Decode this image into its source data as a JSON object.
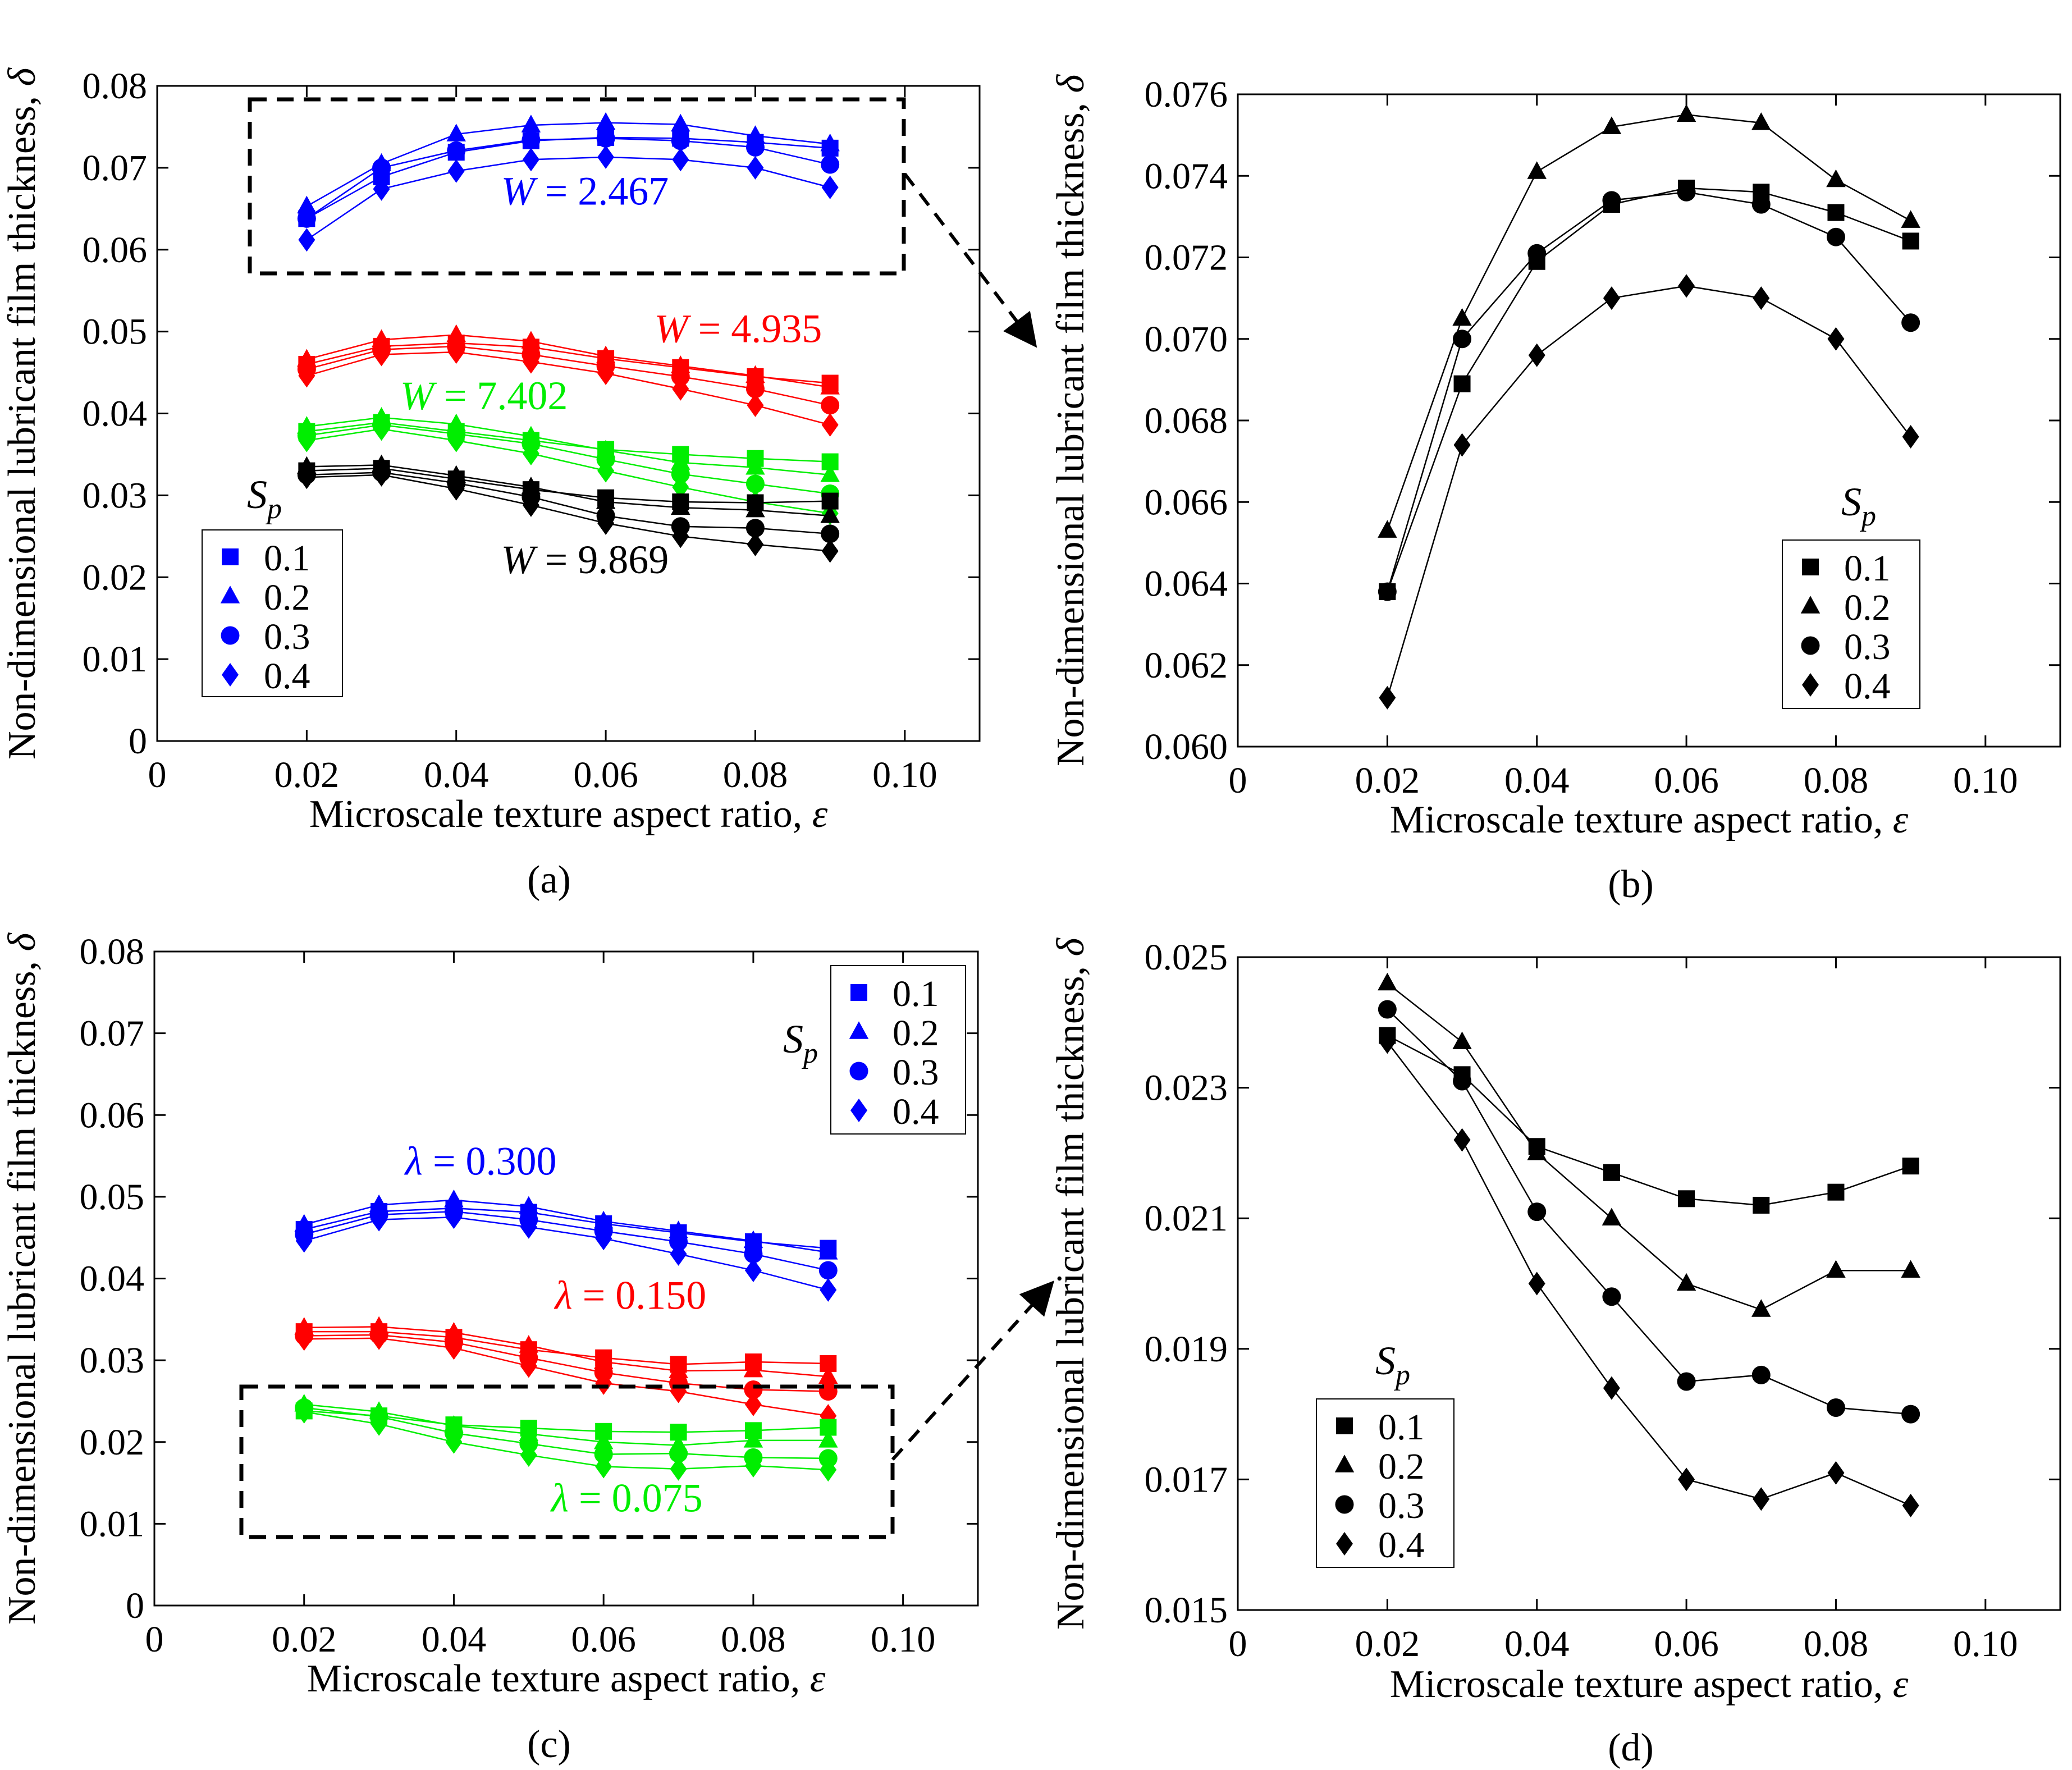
{
  "chart_data": [
    {
      "panel": "a",
      "type": "line",
      "caption": "(a)",
      "xlabel": "Microscale texture aspect ratio, ε",
      "ylabel": "Non-dimensional lubricant film thickness, δ",
      "xlim": [
        0,
        0.11
      ],
      "ylim": [
        0,
        0.08
      ],
      "xticks": [
        "0",
        "0.02",
        "0.04",
        "0.06",
        "0.08",
        "0.10"
      ],
      "yticks": [
        "0",
        "0.01",
        "0.02",
        "0.03",
        "0.04",
        "0.05",
        "0.06",
        "0.07",
        "0.08"
      ],
      "legend": {
        "title": "S",
        "title_sub": "p",
        "placement": "bottom-left",
        "entries": [
          "0.1",
          "0.2",
          "0.3",
          "0.4"
        ],
        "markers": [
          "square",
          "triangle",
          "circle",
          "diamond"
        ],
        "color": "#0000ff"
      },
      "annotations": [
        {
          "prefix": "W",
          "text": " = 2.467",
          "color": "#0000ff",
          "x": 0.046,
          "y": 0.0655
        },
        {
          "prefix": "W",
          "text": " = 4.935",
          "color": "#ff0000",
          "x": 0.0665,
          "y": 0.0487
        },
        {
          "prefix": "W",
          "text": " = 7.402",
          "color": "#00ee00",
          "x": 0.0325,
          "y": 0.0405
        },
        {
          "prefix": "W",
          "text": " = 9.869",
          "color": "#000000",
          "x": 0.046,
          "y": 0.0205
        }
      ],
      "x": [
        0.02,
        0.03,
        0.04,
        0.05,
        0.06,
        0.07,
        0.08,
        0.09
      ],
      "groups": [
        {
          "name": "W = 2.467",
          "color": "#0000ff",
          "series": [
            {
              "name": "0.1",
              "marker": "square",
              "values": [
                0.0638,
                0.0689,
                0.0719,
                0.0733,
                0.0737,
                0.0736,
                0.0731,
                0.0724
              ]
            },
            {
              "name": "0.2",
              "marker": "triangle",
              "values": [
                0.0653,
                0.0705,
                0.0741,
                0.0752,
                0.0755,
                0.0753,
                0.0739,
                0.0729
              ]
            },
            {
              "name": "0.3",
              "marker": "circle",
              "values": [
                0.0638,
                0.07,
                0.0721,
                0.0734,
                0.0736,
                0.0733,
                0.0725,
                0.0704
              ]
            },
            {
              "name": "0.4",
              "marker": "diamond",
              "values": [
                0.0612,
                0.0674,
                0.0696,
                0.071,
                0.0713,
                0.071,
                0.07,
                0.0676
              ]
            }
          ]
        },
        {
          "name": "W = 4.935",
          "color": "#ff0000",
          "series": [
            {
              "name": "0.1",
              "marker": "square",
              "values": [
                0.046,
                0.0482,
                0.0486,
                0.0481,
                0.0467,
                0.0456,
                0.0445,
                0.0437
              ]
            },
            {
              "name": "0.2",
              "marker": "triangle",
              "values": [
                0.0466,
                0.049,
                0.0496,
                0.0488,
                0.047,
                0.0458,
                0.0446,
                0.0432
              ]
            },
            {
              "name": "0.3",
              "marker": "circle",
              "values": [
                0.0454,
                0.0478,
                0.0482,
                0.0472,
                0.0458,
                0.0445,
                0.043,
                0.041
              ]
            },
            {
              "name": "0.4",
              "marker": "diamond",
              "values": [
                0.0446,
                0.0472,
                0.0475,
                0.0463,
                0.0449,
                0.043,
                0.041,
                0.0386
              ]
            }
          ]
        },
        {
          "name": "W = 7.402",
          "color": "#00ee00",
          "series": [
            {
              "name": "0.1",
              "marker": "square",
              "values": [
                0.0378,
                0.0389,
                0.0378,
                0.0367,
                0.0356,
                0.035,
                0.0345,
                0.0341
              ]
            },
            {
              "name": "0.2",
              "marker": "triangle",
              "values": [
                0.0384,
                0.0395,
                0.0387,
                0.0372,
                0.0355,
                0.034,
                0.0334,
                0.0325
              ]
            },
            {
              "name": "0.3",
              "marker": "circle",
              "values": [
                0.0373,
                0.0386,
                0.0375,
                0.0363,
                0.0344,
                0.0326,
                0.0314,
                0.0302
              ]
            },
            {
              "name": "0.4",
              "marker": "diamond",
              "values": [
                0.0367,
                0.0381,
                0.0367,
                0.0351,
                0.033,
                0.031,
                0.0292,
                0.0278
              ]
            }
          ]
        },
        {
          "name": "W = 9.869",
          "color": "#000000",
          "series": [
            {
              "name": "0.1",
              "marker": "square",
              "values": [
                0.033,
                0.0333,
                0.032,
                0.0307,
                0.0297,
                0.0292,
                0.0291,
                0.0293
              ]
            },
            {
              "name": "0.2",
              "marker": "triangle",
              "values": [
                0.0335,
                0.0337,
                0.0324,
                0.031,
                0.0292,
                0.0285,
                0.0282,
                0.0275
              ]
            },
            {
              "name": "0.3",
              "marker": "circle",
              "values": [
                0.0325,
                0.0328,
                0.0315,
                0.0298,
                0.0275,
                0.0262,
                0.026,
                0.0253
              ]
            },
            {
              "name": "0.4",
              "marker": "diamond",
              "values": [
                0.0322,
                0.0325,
                0.0308,
                0.0288,
                0.0266,
                0.025,
                0.024,
                0.0232
              ]
            }
          ]
        }
      ]
    },
    {
      "panel": "b",
      "type": "line",
      "caption": "(b)",
      "xlabel": "Microscale texture aspect ratio, ε",
      "ylabel": "Non-dimensional lubricant film thickness, δ",
      "xlim": [
        0,
        0.11
      ],
      "ylim": [
        0.06,
        0.076
      ],
      "xticks": [
        "0",
        "0.02",
        "0.04",
        "0.06",
        "0.08",
        "0.10"
      ],
      "yticks": [
        "0.060",
        "0.062",
        "0.064",
        "0.066",
        "0.068",
        "0.070",
        "0.072",
        "0.074",
        "0.076"
      ],
      "legend": {
        "title": "S",
        "title_sub": "p",
        "placement": "bottom-right",
        "entries": [
          "0.1",
          "0.2",
          "0.3",
          "0.4"
        ],
        "markers": [
          "square",
          "triangle",
          "circle",
          "diamond"
        ],
        "color": "#000000"
      },
      "annotations": [],
      "x": [
        0.02,
        0.03,
        0.04,
        0.05,
        0.06,
        0.07,
        0.08,
        0.09
      ],
      "groups": [
        {
          "name": "W = 2.467",
          "color": "#000000",
          "series": [
            {
              "name": "0.1",
              "marker": "square",
              "values": [
                0.0638,
                0.0689,
                0.0719,
                0.0733,
                0.0737,
                0.0736,
                0.0731,
                0.0724
              ]
            },
            {
              "name": "0.2",
              "marker": "triangle",
              "values": [
                0.0653,
                0.0705,
                0.0741,
                0.0752,
                0.0755,
                0.0753,
                0.0739,
                0.0729
              ]
            },
            {
              "name": "0.3",
              "marker": "circle",
              "values": [
                0.0638,
                0.07,
                0.0721,
                0.0734,
                0.0736,
                0.0733,
                0.0725,
                0.0704
              ]
            },
            {
              "name": "0.4",
              "marker": "diamond",
              "values": [
                0.0612,
                0.0674,
                0.0696,
                0.071,
                0.0713,
                0.071,
                0.07,
                0.0676
              ]
            }
          ]
        }
      ]
    },
    {
      "panel": "c",
      "type": "line",
      "caption": "(c)",
      "xlabel": "Microscale texture aspect ratio, ε",
      "ylabel": "Non-dimensional lubricant film thickness, δ",
      "xlim": [
        0,
        0.11
      ],
      "ylim": [
        0,
        0.08
      ],
      "xticks": [
        "0",
        "0.02",
        "0.04",
        "0.06",
        "0.08",
        "0.10"
      ],
      "yticks": [
        "0",
        "0.01",
        "0.02",
        "0.03",
        "0.04",
        "0.05",
        "0.06",
        "0.07",
        "0.08"
      ],
      "legend": {
        "title": "S",
        "title_sub": "p",
        "placement": "top-right",
        "entries": [
          "0.1",
          "0.2",
          "0.3",
          "0.4"
        ],
        "markers": [
          "square",
          "triangle",
          "circle",
          "diamond"
        ],
        "color": "#0000ff"
      },
      "annotations": [
        {
          "prefix": "λ",
          "text": " = 0.300",
          "color": "#0000ff",
          "x": 0.0335,
          "y": 0.0527
        },
        {
          "prefix": "λ",
          "text": " = 0.150",
          "color": "#ff0000",
          "x": 0.0535,
          "y": 0.0363
        },
        {
          "prefix": "λ",
          "text": " = 0.075",
          "color": "#00ee00",
          "x": 0.053,
          "y": 0.0115
        }
      ],
      "x": [
        0.02,
        0.03,
        0.04,
        0.05,
        0.06,
        0.07,
        0.08,
        0.09
      ],
      "groups": [
        {
          "name": "λ = 0.300",
          "color": "#0000ff",
          "series": [
            {
              "name": "0.1",
              "marker": "square",
              "values": [
                0.046,
                0.0482,
                0.0486,
                0.0481,
                0.0467,
                0.0456,
                0.0445,
                0.0437
              ]
            },
            {
              "name": "0.2",
              "marker": "triangle",
              "values": [
                0.0466,
                0.049,
                0.0496,
                0.0488,
                0.047,
                0.0458,
                0.0446,
                0.0432
              ]
            },
            {
              "name": "0.3",
              "marker": "circle",
              "values": [
                0.0454,
                0.0478,
                0.0482,
                0.0472,
                0.0458,
                0.0445,
                0.043,
                0.041
              ]
            },
            {
              "name": "0.4",
              "marker": "diamond",
              "values": [
                0.0446,
                0.0472,
                0.0475,
                0.0463,
                0.0449,
                0.043,
                0.041,
                0.0386
              ]
            }
          ]
        },
        {
          "name": "λ = 0.150",
          "color": "#ff0000",
          "series": [
            {
              "name": "0.1",
              "marker": "square",
              "values": [
                0.0335,
                0.0335,
                0.0328,
                0.0313,
                0.0303,
                0.0295,
                0.0298,
                0.0296
              ]
            },
            {
              "name": "0.2",
              "marker": "triangle",
              "values": [
                0.034,
                0.0341,
                0.0334,
                0.0318,
                0.0298,
                0.0287,
                0.0288,
                0.028
              ]
            },
            {
              "name": "0.3",
              "marker": "circle",
              "values": [
                0.033,
                0.0331,
                0.0322,
                0.0303,
                0.0285,
                0.0272,
                0.0264,
                0.0262
              ]
            },
            {
              "name": "0.4",
              "marker": "diamond",
              "values": [
                0.0326,
                0.0327,
                0.0315,
                0.0293,
                0.0272,
                0.0262,
                0.0246,
                0.0232
              ]
            }
          ]
        },
        {
          "name": "λ = 0.075",
          "color": "#00ee00",
          "series": [
            {
              "name": "0.1",
              "marker": "square",
              "values": [
                0.0238,
                0.0232,
                0.0221,
                0.0217,
                0.0213,
                0.0212,
                0.0214,
                0.0218
              ]
            },
            {
              "name": "0.2",
              "marker": "triangle",
              "values": [
                0.0246,
                0.0237,
                0.022,
                0.021,
                0.02,
                0.0196,
                0.0202,
                0.0202
              ]
            },
            {
              "name": "0.3",
              "marker": "circle",
              "values": [
                0.0242,
                0.0231,
                0.0211,
                0.0198,
                0.0185,
                0.0186,
                0.0181,
                0.018
              ]
            },
            {
              "name": "0.4",
              "marker": "diamond",
              "values": [
                0.0237,
                0.0222,
                0.02,
                0.0184,
                0.017,
                0.0167,
                0.0171,
                0.0166
              ]
            }
          ]
        }
      ]
    },
    {
      "panel": "d",
      "type": "line",
      "caption": "(d)",
      "xlabel": "Microscale texture aspect ratio, ε",
      "ylabel": "Non-dimensional lubricant film thickness, δ",
      "xlim": [
        0,
        0.11
      ],
      "ylim": [
        0.015,
        0.025
      ],
      "xticks": [
        "0",
        "0.02",
        "0.04",
        "0.06",
        "0.08",
        "0.10"
      ],
      "yticks": [
        "0.015",
        "0.017",
        "0.019",
        "0.021",
        "0.023",
        "0.025"
      ],
      "legend": {
        "title": "S",
        "title_sub": "p",
        "placement": "bottom-left",
        "entries": [
          "0.1",
          "0.2",
          "0.3",
          "0.4"
        ],
        "markers": [
          "square",
          "triangle",
          "circle",
          "diamond"
        ],
        "color": "#000000"
      },
      "annotations": [],
      "x": [
        0.02,
        0.03,
        0.04,
        0.05,
        0.06,
        0.07,
        0.08,
        0.09
      ],
      "groups": [
        {
          "name": "λ = 0.075",
          "color": "#000000",
          "series": [
            {
              "name": "0.1",
              "marker": "square",
              "values": [
                0.0238,
                0.0232,
                0.0221,
                0.0217,
                0.0213,
                0.0212,
                0.0214,
                0.0218
              ]
            },
            {
              "name": "0.2",
              "marker": "triangle",
              "values": [
                0.0246,
                0.0237,
                0.022,
                0.021,
                0.02,
                0.0196,
                0.0202,
                0.0202
              ]
            },
            {
              "name": "0.3",
              "marker": "circle",
              "values": [
                0.0242,
                0.0231,
                0.0211,
                0.0198,
                0.0185,
                0.0186,
                0.0181,
                0.018
              ]
            },
            {
              "name": "0.4",
              "marker": "diamond",
              "values": [
                0.0237,
                0.0222,
                0.02,
                0.0184,
                0.017,
                0.0167,
                0.0171,
                0.0166
              ]
            }
          ]
        }
      ]
    }
  ]
}
